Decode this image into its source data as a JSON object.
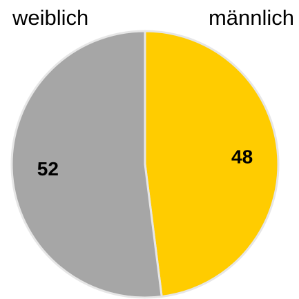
{
  "chart_data": {
    "type": "pie",
    "categories": [
      "männlich",
      "weiblich"
    ],
    "values": [
      48,
      52
    ],
    "colors": [
      "#ffcc00",
      "#a6a6a6"
    ]
  }
}
